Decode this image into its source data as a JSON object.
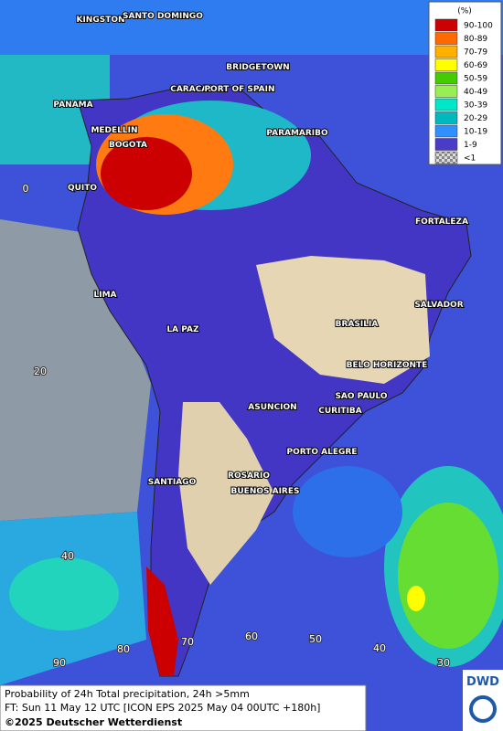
{
  "map": {
    "cities": [
      "KINGSTON",
      "SANTO DOMINGO",
      "BRIDGETOWN",
      "CARACAS",
      "PORT OF SPAIN",
      "PANAMA",
      "MEDELLIN",
      "BOGOTA",
      "PARAMARIBO",
      "QUITO",
      "FORTALEZA",
      "LIMA",
      "SALVADOR",
      "BRASILIA",
      "LA PAZ",
      "BELO HORIZONTE",
      "SAO PAULO",
      "ASUNCION",
      "CURITIBA",
      "PORTO ALEGRE",
      "SANTIAGO",
      "ROSARIO",
      "BUENOS AIRES"
    ],
    "lat_labels": [
      "0",
      "20",
      "40"
    ],
    "lon_labels": [
      "90",
      "80",
      "70",
      "60",
      "50",
      "40",
      "30"
    ]
  },
  "legend": {
    "title": "(%)",
    "entries": [
      {
        "label": "90-100",
        "color": "#cc0000"
      },
      {
        "label": "80-89",
        "color": "#ff6a00"
      },
      {
        "label": "70-79",
        "color": "#ffb000"
      },
      {
        "label": "60-69",
        "color": "#ffff00"
      },
      {
        "label": "50-59",
        "color": "#44cc00"
      },
      {
        "label": "40-49",
        "color": "#99ee55"
      },
      {
        "label": "30-39",
        "color": "#00e6c8"
      },
      {
        "label": "20-29",
        "color": "#00b8c0"
      },
      {
        "label": "10-19",
        "color": "#3090ff"
      },
      {
        "label": "1-9",
        "color": "#4a3cc8"
      },
      {
        "label": "<1",
        "color": "#b0b0b0"
      }
    ]
  },
  "footer": {
    "line1": "Probability of 24h Total precipitation, 24h >5mm",
    "line2": "FT: Sun 11 May 12 UTC [ICON EPS 2025 May 04 00UTC +180h]",
    "copyright": "©2025 Deutscher Wetterdienst",
    "logo": "DWD"
  }
}
